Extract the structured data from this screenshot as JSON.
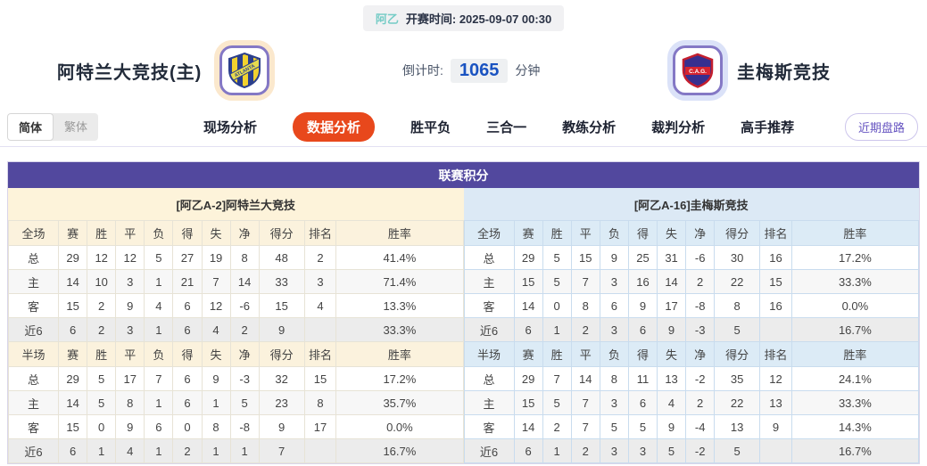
{
  "topbar": {
    "league_badge": "阿乙",
    "kickoff_label": "开赛时间:",
    "kickoff_time": "2025-09-07 00:30"
  },
  "match": {
    "home_name": "阿特兰大竞技(主)",
    "home_logo_text": "ATLANTA",
    "away_name": "圭梅斯竞技",
    "away_logo_text": "C.A.G.",
    "countdown_label": "倒计时:",
    "countdown_value": "1065",
    "countdown_unit": "分钟"
  },
  "lang_toggle": {
    "simplified": "简体",
    "traditional": "繁体",
    "selected": "简体"
  },
  "nav": {
    "tabs": [
      {
        "label": "现场分析",
        "active": false
      },
      {
        "label": "数据分析",
        "active": true
      },
      {
        "label": "胜平负",
        "active": false
      },
      {
        "label": "三合一",
        "active": false
      },
      {
        "label": "教练分析",
        "active": false
      },
      {
        "label": "裁判分析",
        "active": false
      },
      {
        "label": "高手推荐",
        "active": false
      }
    ],
    "recent_trend_button": "近期盘路"
  },
  "standings": {
    "title": "联赛积分",
    "sides": [
      {
        "key": "home",
        "header": "[阿乙A-2]阿特兰大竞技",
        "sections": [
          {
            "columns": [
              "全场",
              "赛",
              "胜",
              "平",
              "负",
              "得",
              "失",
              "净",
              "得分",
              "排名",
              "胜率"
            ],
            "rows": [
              {
                "label": "总",
                "type": "total",
                "cells": [
                  "29",
                  "12",
                  "12",
                  "5",
                  "27",
                  "19",
                  "8",
                  "48",
                  "2",
                  "41.4%"
                ]
              },
              {
                "label": "主",
                "type": "home",
                "cells": [
                  "14",
                  "10",
                  "3",
                  "1",
                  "21",
                  "7",
                  "14",
                  "33",
                  "3",
                  "71.4%"
                ]
              },
              {
                "label": "客",
                "type": "away",
                "cells": [
                  "15",
                  "2",
                  "9",
                  "4",
                  "6",
                  "12",
                  "-6",
                  "15",
                  "4",
                  "13.3%"
                ]
              },
              {
                "label": "近6",
                "type": "recent",
                "cells": [
                  "6",
                  "2",
                  "3",
                  "1",
                  "6",
                  "4",
                  "2",
                  "9",
                  "",
                  "33.3%"
                ]
              }
            ]
          },
          {
            "columns": [
              "半场",
              "赛",
              "胜",
              "平",
              "负",
              "得",
              "失",
              "净",
              "得分",
              "排名",
              "胜率"
            ],
            "rows": [
              {
                "label": "总",
                "type": "total",
                "cells": [
                  "29",
                  "5",
                  "17",
                  "7",
                  "6",
                  "9",
                  "-3",
                  "32",
                  "15",
                  "17.2%"
                ]
              },
              {
                "label": "主",
                "type": "home",
                "cells": [
                  "14",
                  "5",
                  "8",
                  "1",
                  "6",
                  "1",
                  "5",
                  "23",
                  "8",
                  "35.7%"
                ]
              },
              {
                "label": "客",
                "type": "away",
                "cells": [
                  "15",
                  "0",
                  "9",
                  "6",
                  "0",
                  "8",
                  "-8",
                  "9",
                  "17",
                  "0.0%"
                ]
              },
              {
                "label": "近6",
                "type": "recent",
                "cells": [
                  "6",
                  "1",
                  "4",
                  "1",
                  "2",
                  "1",
                  "1",
                  "7",
                  "",
                  "16.7%"
                ]
              }
            ]
          }
        ]
      },
      {
        "key": "away",
        "header": "[阿乙A-16]圭梅斯竞技",
        "sections": [
          {
            "columns": [
              "全场",
              "赛",
              "胜",
              "平",
              "负",
              "得",
              "失",
              "净",
              "得分",
              "排名",
              "胜率"
            ],
            "rows": [
              {
                "label": "总",
                "type": "total",
                "cells": [
                  "29",
                  "5",
                  "15",
                  "9",
                  "25",
                  "31",
                  "-6",
                  "30",
                  "16",
                  "17.2%"
                ]
              },
              {
                "label": "主",
                "type": "home",
                "cells": [
                  "15",
                  "5",
                  "7",
                  "3",
                  "16",
                  "14",
                  "2",
                  "22",
                  "15",
                  "33.3%"
                ]
              },
              {
                "label": "客",
                "type": "away",
                "cells": [
                  "14",
                  "0",
                  "8",
                  "6",
                  "9",
                  "17",
                  "-8",
                  "8",
                  "16",
                  "0.0%"
                ]
              },
              {
                "label": "近6",
                "type": "recent",
                "cells": [
                  "6",
                  "1",
                  "2",
                  "3",
                  "6",
                  "9",
                  "-3",
                  "5",
                  "",
                  "16.7%"
                ]
              }
            ]
          },
          {
            "columns": [
              "半场",
              "赛",
              "胜",
              "平",
              "负",
              "得",
              "失",
              "净",
              "得分",
              "排名",
              "胜率"
            ],
            "rows": [
              {
                "label": "总",
                "type": "total",
                "cells": [
                  "29",
                  "7",
                  "14",
                  "8",
                  "11",
                  "13",
                  "-2",
                  "35",
                  "12",
                  "24.1%"
                ]
              },
              {
                "label": "主",
                "type": "home",
                "cells": [
                  "15",
                  "5",
                  "7",
                  "3",
                  "6",
                  "4",
                  "2",
                  "22",
                  "13",
                  "33.3%"
                ]
              },
              {
                "label": "客",
                "type": "away",
                "cells": [
                  "14",
                  "2",
                  "7",
                  "5",
                  "5",
                  "9",
                  "-4",
                  "13",
                  "9",
                  "14.3%"
                ]
              },
              {
                "label": "近6",
                "type": "recent",
                "cells": [
                  "6",
                  "1",
                  "2",
                  "3",
                  "3",
                  "5",
                  "-2",
                  "5",
                  "",
                  "16.7%"
                ]
              }
            ]
          }
        ]
      }
    ]
  },
  "colors": {
    "banner_purple": "#52489e",
    "active_tab_orange": "#e8481c",
    "home_panel_cream": "#fdf3da",
    "away_panel_blue": "#dce9f5",
    "home_row_red": "#d03028",
    "away_row_blue": "#2236cf",
    "countdown_blue": "#1a53c1",
    "league_teal": "#76ccc6"
  }
}
